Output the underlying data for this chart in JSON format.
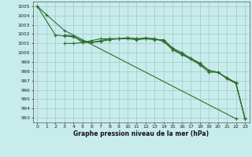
{
  "title": "Graphe pression niveau de la mer (hPa)",
  "background_color": "#c8ecec",
  "grid_color": "#a0c8c8",
  "line_color": "#2d6e2d",
  "xlim": [
    -0.5,
    23.5
  ],
  "ylim": [
    992.5,
    1005.5
  ],
  "yticks": [
    993,
    994,
    995,
    996,
    997,
    998,
    999,
    1000,
    1001,
    1002,
    1003,
    1004,
    1005
  ],
  "xticks": [
    0,
    1,
    2,
    3,
    4,
    5,
    6,
    7,
    8,
    9,
    10,
    11,
    12,
    13,
    14,
    15,
    16,
    17,
    18,
    19,
    20,
    21,
    22,
    23
  ],
  "lines": [
    [
      0,
      1005.0,
      1,
      1004.1,
      3,
      1002.4,
      22,
      992.9
    ],
    [
      0,
      1005.0,
      2,
      1001.9,
      3,
      1001.8,
      4,
      1001.7,
      5,
      1001.3,
      6,
      1001.1,
      7,
      1001.2,
      8,
      1001.4,
      9,
      1001.5,
      10,
      1001.5,
      11,
      1001.4,
      12,
      1001.5,
      13,
      1001.4,
      14,
      1001.4,
      15,
      1000.5,
      16,
      1000.0,
      17,
      999.4,
      18,
      998.9,
      19,
      998.1,
      20,
      997.9,
      21,
      997.2,
      22,
      996.7,
      23,
      992.9
    ],
    [
      3,
      1001.9,
      4,
      1001.8,
      5,
      1001.1,
      6,
      1001.1,
      7,
      1001.3,
      8,
      1001.5,
      9,
      1001.5,
      10,
      1001.6,
      11,
      1001.5,
      12,
      1001.6,
      13,
      1001.5,
      14,
      1001.3,
      15,
      1000.4,
      16,
      999.9,
      17,
      999.4,
      18,
      998.8,
      19,
      998.1,
      20,
      997.9,
      21,
      997.3,
      22,
      996.8,
      23,
      992.9
    ],
    [
      3,
      1001.0,
      4,
      1001.0,
      5,
      1001.1,
      6,
      1001.3,
      7,
      1001.5,
      8,
      1001.5,
      9,
      1001.5,
      10,
      1001.6,
      11,
      1001.5,
      12,
      1001.5,
      13,
      1001.5,
      14,
      1001.2,
      15,
      1000.3,
      16,
      999.8,
      17,
      999.3,
      18,
      998.7,
      19,
      997.9,
      20,
      997.9,
      21,
      997.3,
      22,
      996.7,
      23,
      992.9
    ]
  ],
  "title_fontsize": 5.5,
  "tick_fontsize": 4.5,
  "linewidth": 0.8,
  "markersize": 2.5,
  "markeredgewidth": 0.8
}
